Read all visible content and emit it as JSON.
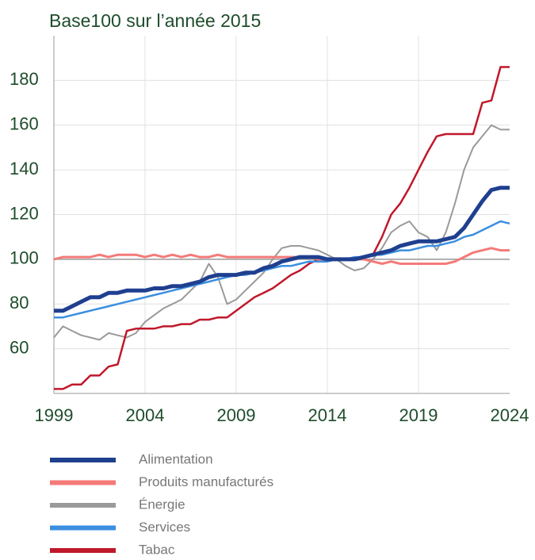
{
  "chart_data": {
    "type": "line",
    "title": "Base100 sur l’année 2015",
    "x": [
      1999,
      1999.5,
      2000,
      2000.5,
      2001,
      2001.5,
      2002,
      2002.5,
      2003,
      2003.5,
      2004,
      2004.5,
      2005,
      2005.5,
      2006,
      2006.5,
      2007,
      2007.5,
      2008,
      2008.5,
      2009,
      2009.5,
      2010,
      2010.5,
      2011,
      2011.5,
      2012,
      2012.5,
      2013,
      2013.5,
      2014,
      2014.5,
      2015,
      2015.5,
      2016,
      2016.5,
      2017,
      2017.5,
      2018,
      2018.5,
      2019,
      2019.5,
      2020,
      2020.5,
      2021,
      2021.5,
      2022,
      2022.5,
      2023,
      2023.5,
      2024
    ],
    "series": [
      {
        "name": "Alimentation",
        "color": "#1f3f8f",
        "width": 5,
        "values": [
          77,
          77,
          79,
          81,
          83,
          83,
          85,
          85,
          86,
          86,
          86,
          87,
          87,
          88,
          88,
          89,
          90,
          92,
          93,
          93,
          93,
          94,
          94,
          96,
          97,
          99,
          100,
          101,
          101,
          101,
          100,
          100,
          100,
          100,
          101,
          102,
          103,
          104,
          106,
          107,
          108,
          108,
          108,
          109,
          110,
          114,
          120,
          126,
          131,
          132,
          132
        ]
      },
      {
        "name": "Produits manufacturés",
        "color": "#f47a78",
        "width": 3,
        "values": [
          100,
          101,
          101,
          101,
          101,
          102,
          101,
          102,
          102,
          102,
          101,
          102,
          101,
          102,
          101,
          102,
          101,
          101,
          102,
          101,
          101,
          101,
          101,
          101,
          101,
          101,
          101,
          101,
          101,
          100,
          100,
          100,
          100,
          100,
          100,
          99,
          98,
          99,
          98,
          98,
          98,
          98,
          98,
          98,
          99,
          101,
          103,
          104,
          105,
          104,
          104
        ]
      },
      {
        "name": "Énergie",
        "color": "#9a9a9a",
        "width": 2,
        "values": [
          65,
          70,
          68,
          66,
          65,
          64,
          67,
          66,
          65,
          67,
          72,
          75,
          78,
          80,
          82,
          86,
          90,
          98,
          92,
          80,
          82,
          86,
          90,
          94,
          100,
          105,
          106,
          106,
          105,
          104,
          102,
          100,
          97,
          95,
          96,
          100,
          105,
          112,
          115,
          117,
          112,
          110,
          104,
          112,
          125,
          140,
          150,
          155,
          160,
          158,
          158
        ]
      },
      {
        "name": "Services",
        "color": "#3b8fe0",
        "width": 2.5,
        "values": [
          74,
          74,
          75,
          76,
          77,
          78,
          79,
          80,
          81,
          82,
          83,
          84,
          85,
          86,
          87,
          88,
          89,
          90,
          91,
          92,
          93,
          93,
          94,
          95,
          96,
          97,
          97,
          98,
          99,
          99,
          99,
          100,
          100,
          101,
          101,
          102,
          102,
          103,
          104,
          104,
          105,
          106,
          106,
          107,
          108,
          110,
          111,
          113,
          115,
          117,
          116
        ]
      },
      {
        "name": "Tabac",
        "color": "#c0182b",
        "width": 2.5,
        "values": [
          42,
          42,
          44,
          44,
          48,
          48,
          52,
          53,
          68,
          69,
          69,
          69,
          70,
          70,
          71,
          71,
          73,
          73,
          74,
          74,
          77,
          80,
          83,
          85,
          87,
          90,
          93,
          95,
          98,
          100,
          100,
          100,
          100,
          100,
          101,
          102,
          110,
          120,
          125,
          132,
          140,
          148,
          155,
          156,
          156,
          156,
          156,
          170,
          171,
          186,
          186
        ]
      }
    ],
    "xlim": [
      1999,
      2024
    ],
    "xticks": [
      1999,
      2004,
      2009,
      2014,
      2019,
      2024
    ],
    "ylim": [
      40,
      200
    ],
    "yticks": [
      60,
      80,
      100,
      120,
      140,
      160,
      180
    ],
    "grid": true,
    "hline": 100,
    "legend": "bottom"
  }
}
